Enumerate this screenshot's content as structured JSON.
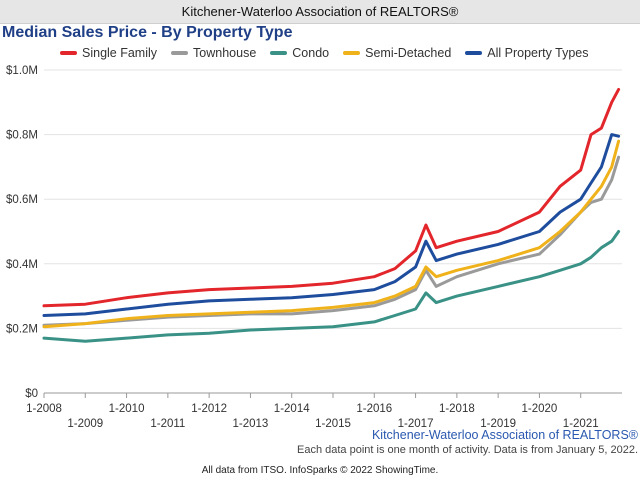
{
  "header": {
    "title": "Kitchener-Waterloo Association of REALTORS®"
  },
  "watermark": "Kitchener-Waterloo Association of REALTORS®",
  "footnote": "Each data point is one month of activity. Data is from January 5, 2022.",
  "credit": "All data from ITSO. InfoSparks © 2022 ShowingTime.",
  "chart_data": {
    "type": "line",
    "title": "Median Sales Price - By Property Type",
    "xlabel": "",
    "ylabel": "",
    "ylim": [
      0,
      1000000
    ],
    "y_ticks": [
      "$0",
      "$0.2M",
      "$0.4M",
      "$0.6M",
      "$0.8M",
      "$1.0M"
    ],
    "x_ticks_upper": [
      "1-2008",
      "1-2010",
      "1-2012",
      "1-2014",
      "1-2016",
      "1-2018",
      "1-2020"
    ],
    "x_ticks_lower": [
      "1-2009",
      "1-2011",
      "1-2013",
      "1-2015",
      "1-2017",
      "1-2019",
      "1-2021"
    ],
    "grid": true,
    "legend_position": "top",
    "x": [
      "2008-01",
      "2009-01",
      "2010-01",
      "2011-01",
      "2012-01",
      "2013-01",
      "2014-01",
      "2015-01",
      "2016-01",
      "2016-07",
      "2017-01",
      "2017-04",
      "2017-07",
      "2018-01",
      "2019-01",
      "2020-01",
      "2020-07",
      "2021-01",
      "2021-04",
      "2021-07",
      "2021-10",
      "2021-12"
    ],
    "series": [
      {
        "name": "Single Family",
        "color": "#e3262b",
        "values": [
          270000,
          275000,
          295000,
          310000,
          320000,
          325000,
          330000,
          340000,
          360000,
          385000,
          440000,
          520000,
          450000,
          470000,
          500000,
          560000,
          640000,
          690000,
          800000,
          820000,
          900000,
          940000
        ]
      },
      {
        "name": "Townhouse",
        "color": "#9a9a9a",
        "values": [
          210000,
          215000,
          225000,
          235000,
          240000,
          245000,
          245000,
          255000,
          270000,
          290000,
          320000,
          380000,
          330000,
          360000,
          400000,
          430000,
          490000,
          560000,
          590000,
          600000,
          660000,
          730000
        ]
      },
      {
        "name": "Condo",
        "color": "#3a9287",
        "values": [
          170000,
          160000,
          170000,
          180000,
          185000,
          195000,
          200000,
          205000,
          220000,
          240000,
          260000,
          310000,
          280000,
          300000,
          330000,
          360000,
          380000,
          400000,
          420000,
          450000,
          470000,
          500000
        ]
      },
      {
        "name": "Semi-Detached",
        "color": "#f0b21a",
        "values": [
          205000,
          215000,
          230000,
          240000,
          245000,
          250000,
          255000,
          265000,
          280000,
          300000,
          330000,
          390000,
          360000,
          380000,
          410000,
          450000,
          500000,
          560000,
          600000,
          640000,
          700000,
          780000
        ]
      },
      {
        "name": "All Property Types",
        "color": "#1f4d9e",
        "values": [
          240000,
          245000,
          260000,
          275000,
          285000,
          290000,
          295000,
          305000,
          320000,
          345000,
          390000,
          470000,
          410000,
          430000,
          460000,
          500000,
          560000,
          600000,
          650000,
          700000,
          800000,
          795000
        ]
      }
    ]
  }
}
